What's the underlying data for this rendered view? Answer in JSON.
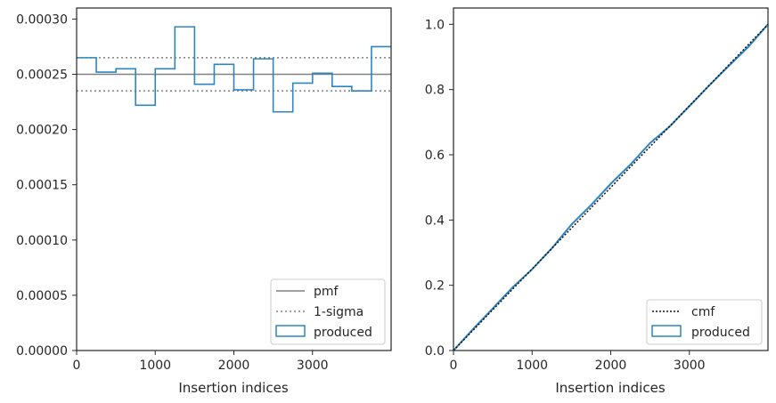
{
  "colors": {
    "produced": "#2e86c1",
    "pmf": "#808080",
    "sigma": "#808080",
    "cmf": "#111111",
    "axes": "#262626"
  },
  "chart_data": [
    {
      "type": "histogram",
      "xlabel": "Insertion indices",
      "ylabel": "",
      "xlim": [
        0,
        4000
      ],
      "ylim": [
        0,
        0.00031
      ],
      "x_ticks": [
        "0",
        "1000",
        "2000",
        "3000"
      ],
      "y_ticks": [
        "0.00000",
        "0.00005",
        "0.00010",
        "0.00015",
        "0.00020",
        "0.00025",
        "0.00030"
      ],
      "legend_position": "lower-right",
      "legend": [
        "pmf",
        "1-sigma",
        "produced"
      ],
      "pmf": 0.00025,
      "sigma_band": [
        0.000235,
        0.000265
      ],
      "bin_edges": [
        0,
        250,
        500,
        750,
        1000,
        1250,
        1500,
        1750,
        2000,
        2250,
        2500,
        2750,
        3000,
        3250,
        3500,
        3750,
        4000
      ],
      "produced": [
        0.000265,
        0.000252,
        0.000255,
        0.000222,
        0.000255,
        0.000293,
        0.000241,
        0.000259,
        0.000236,
        0.000264,
        0.000216,
        0.000242,
        0.000251,
        0.000239,
        0.000235,
        0.000275
      ]
    },
    {
      "type": "line",
      "xlabel": "Insertion indices",
      "ylabel": "",
      "xlim": [
        0,
        4000
      ],
      "ylim": [
        0,
        1.05
      ],
      "x_ticks": [
        "0",
        "1000",
        "2000",
        "3000"
      ],
      "y_ticks": [
        "0.0",
        "0.2",
        "0.4",
        "0.6",
        "0.8",
        "1.0"
      ],
      "legend_position": "lower-right",
      "legend": [
        "cmf",
        "produced"
      ],
      "cmf": {
        "x": [
          0,
          4000
        ],
        "y": [
          0,
          1.0
        ]
      },
      "produced": {
        "x": [
          0,
          250,
          500,
          750,
          1000,
          1250,
          1500,
          1750,
          2000,
          2250,
          2500,
          2750,
          3000,
          3250,
          3500,
          3750,
          4000
        ],
        "y": [
          0,
          0.066,
          0.129,
          0.193,
          0.249,
          0.313,
          0.386,
          0.446,
          0.511,
          0.57,
          0.636,
          0.687,
          0.749,
          0.812,
          0.872,
          0.931,
          1.0
        ]
      }
    }
  ]
}
